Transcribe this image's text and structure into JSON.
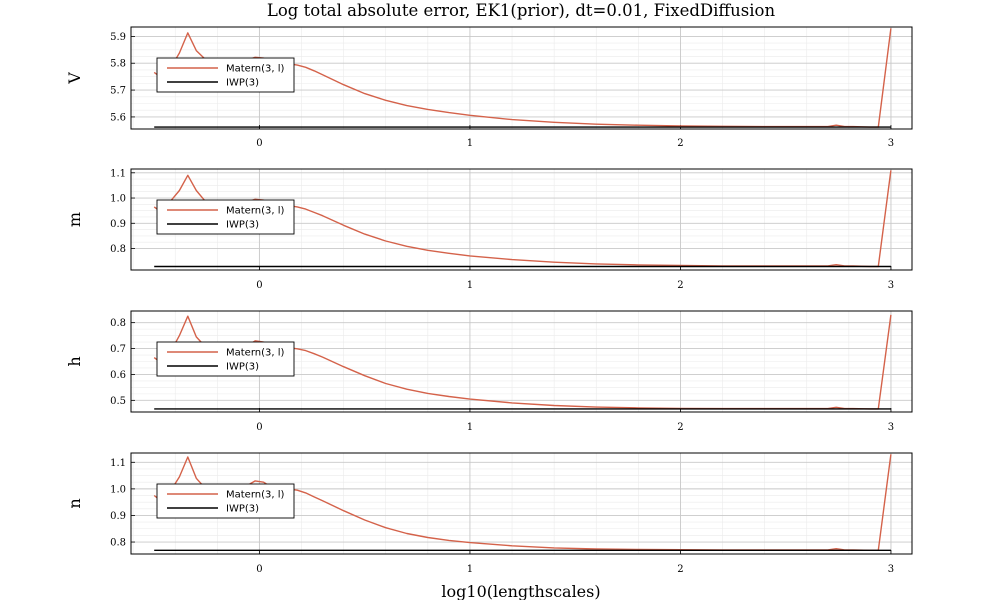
{
  "title": "Log total absolute error, EK1(prior), dt=0.01, FixedDiffusion",
  "xlabel": "log10(lengthscales)",
  "chart_data": [
    {
      "type": "line",
      "ylabel": "V",
      "xlim": [
        -0.61,
        3.1
      ],
      "ylim": [
        5.555,
        5.935
      ],
      "xticks": [
        0,
        1,
        2,
        3
      ],
      "yticks": [
        5.6,
        5.7,
        5.8,
        5.9
      ],
      "ytick_labels": [
        "5.6",
        "5.7",
        "5.8",
        "5.9"
      ],
      "grid": true,
      "legend": "upper-left",
      "series": [
        {
          "name": "Matern(3, l)",
          "color": "#d4624a",
          "x": [
            -0.5,
            -0.46,
            -0.42,
            -0.38,
            -0.34,
            -0.3,
            -0.26,
            -0.22,
            -0.18,
            -0.14,
            -0.1,
            -0.06,
            -0.02,
            0.02,
            0.06,
            0.1,
            0.14,
            0.18,
            0.22,
            0.26,
            0.3,
            0.4,
            0.5,
            0.6,
            0.7,
            0.8,
            0.9,
            1.0,
            1.2,
            1.4,
            1.6,
            1.8,
            2.0,
            2.2,
            2.4,
            2.6,
            2.7,
            2.74,
            2.78,
            2.82,
            2.9,
            2.94,
            3.0
          ],
          "y": [
            5.766,
            5.743,
            5.785,
            5.838,
            5.913,
            5.847,
            5.817,
            5.775,
            5.795,
            5.767,
            5.802,
            5.812,
            5.822,
            5.819,
            5.802,
            5.798,
            5.798,
            5.793,
            5.785,
            5.772,
            5.757,
            5.72,
            5.687,
            5.662,
            5.642,
            5.628,
            5.616,
            5.606,
            5.59,
            5.58,
            5.573,
            5.569,
            5.566,
            5.565,
            5.564,
            5.564,
            5.564,
            5.569,
            5.564,
            5.564,
            5.562,
            5.562,
            5.93
          ]
        },
        {
          "name": "IWP(3)",
          "color": "#000000",
          "x": [
            -0.5,
            3.0
          ],
          "y": [
            5.562,
            5.562
          ]
        }
      ]
    },
    {
      "type": "line",
      "ylabel": "m",
      "xlim": [
        -0.61,
        3.1
      ],
      "ylim": [
        0.715,
        1.115
      ],
      "xticks": [
        0,
        1,
        2,
        3
      ],
      "yticks": [
        0.8,
        0.9,
        1.0,
        1.1
      ],
      "ytick_labels": [
        "0.8",
        "0.9",
        "1.0",
        "1.1"
      ],
      "grid": true,
      "legend": "upper-left",
      "series": [
        {
          "name": "Matern(3, l)",
          "color": "#d4624a",
          "x": [
            -0.5,
            -0.46,
            -0.42,
            -0.38,
            -0.34,
            -0.3,
            -0.26,
            -0.22,
            -0.18,
            -0.14,
            -0.1,
            -0.06,
            -0.02,
            0.02,
            0.06,
            0.1,
            0.14,
            0.18,
            0.22,
            0.26,
            0.3,
            0.4,
            0.5,
            0.6,
            0.7,
            0.8,
            0.9,
            1.0,
            1.2,
            1.4,
            1.6,
            1.8,
            2.0,
            2.2,
            2.4,
            2.6,
            2.7,
            2.74,
            2.78,
            2.82,
            2.9,
            2.94,
            3.0
          ],
          "y": [
            0.965,
            0.94,
            0.99,
            1.03,
            1.09,
            1.03,
            0.99,
            0.955,
            0.97,
            0.94,
            0.975,
            0.985,
            0.995,
            0.992,
            0.975,
            0.97,
            0.97,
            0.965,
            0.956,
            0.943,
            0.93,
            0.892,
            0.857,
            0.83,
            0.809,
            0.793,
            0.781,
            0.771,
            0.756,
            0.746,
            0.739,
            0.735,
            0.733,
            0.731,
            0.731,
            0.731,
            0.731,
            0.736,
            0.731,
            0.731,
            0.729,
            0.729,
            1.11
          ]
        },
        {
          "name": "IWP(3)",
          "color": "#000000",
          "x": [
            -0.5,
            3.0
          ],
          "y": [
            0.729,
            0.729
          ]
        }
      ]
    },
    {
      "type": "line",
      "ylabel": "h",
      "xlim": [
        -0.61,
        3.1
      ],
      "ylim": [
        0.455,
        0.845
      ],
      "xticks": [
        0,
        1,
        2,
        3
      ],
      "yticks": [
        0.5,
        0.6,
        0.7,
        0.8
      ],
      "ytick_labels": [
        "0.5",
        "0.6",
        "0.7",
        "0.8"
      ],
      "grid": true,
      "legend": "upper-left",
      "series": [
        {
          "name": "Matern(3, l)",
          "color": "#d4624a",
          "x": [
            -0.5,
            -0.46,
            -0.42,
            -0.38,
            -0.34,
            -0.3,
            -0.26,
            -0.22,
            -0.18,
            -0.14,
            -0.1,
            -0.06,
            -0.02,
            0.02,
            0.06,
            0.1,
            0.14,
            0.18,
            0.22,
            0.26,
            0.3,
            0.4,
            0.5,
            0.6,
            0.7,
            0.8,
            0.9,
            1.0,
            1.2,
            1.4,
            1.6,
            1.8,
            2.0,
            2.2,
            2.4,
            2.6,
            2.7,
            2.74,
            2.78,
            2.82,
            2.9,
            2.94,
            3.0
          ],
          "y": [
            0.665,
            0.64,
            0.69,
            0.75,
            0.825,
            0.745,
            0.71,
            0.675,
            0.69,
            0.665,
            0.7,
            0.71,
            0.73,
            0.725,
            0.705,
            0.703,
            0.703,
            0.699,
            0.692,
            0.68,
            0.667,
            0.63,
            0.595,
            0.565,
            0.543,
            0.527,
            0.515,
            0.505,
            0.49,
            0.48,
            0.474,
            0.471,
            0.469,
            0.468,
            0.468,
            0.468,
            0.468,
            0.473,
            0.468,
            0.468,
            0.467,
            0.467,
            0.83
          ]
        },
        {
          "name": "IWP(3)",
          "color": "#000000",
          "x": [
            -0.5,
            3.0
          ],
          "y": [
            0.467,
            0.467
          ]
        }
      ]
    },
    {
      "type": "line",
      "ylabel": "n",
      "xlim": [
        -0.61,
        3.1
      ],
      "ylim": [
        0.755,
        1.135
      ],
      "xticks": [
        0,
        1,
        2,
        3
      ],
      "yticks": [
        0.8,
        0.9,
        1.0,
        1.1
      ],
      "ytick_labels": [
        "0.8",
        "0.9",
        "1.0",
        "1.1"
      ],
      "grid": true,
      "legend": "upper-left",
      "series": [
        {
          "name": "Matern(3, l)",
          "color": "#d4624a",
          "x": [
            -0.5,
            -0.46,
            -0.42,
            -0.38,
            -0.34,
            -0.3,
            -0.26,
            -0.22,
            -0.18,
            -0.14,
            -0.1,
            -0.06,
            -0.02,
            0.02,
            0.06,
            0.1,
            0.14,
            0.18,
            0.22,
            0.26,
            0.3,
            0.4,
            0.5,
            0.6,
            0.7,
            0.8,
            0.9,
            1.0,
            1.2,
            1.4,
            1.6,
            1.8,
            2.0,
            2.2,
            2.4,
            2.6,
            2.7,
            2.74,
            2.78,
            2.82,
            2.9,
            2.94,
            3.0
          ],
          "y": [
            0.975,
            0.95,
            0.995,
            1.045,
            1.12,
            1.04,
            1.005,
            0.97,
            0.99,
            0.965,
            1.0,
            1.012,
            1.03,
            1.025,
            1.005,
            1.0,
            1.0,
            0.995,
            0.985,
            0.97,
            0.955,
            0.918,
            0.883,
            0.854,
            0.832,
            0.817,
            0.806,
            0.798,
            0.786,
            0.778,
            0.774,
            0.772,
            0.771,
            0.77,
            0.77,
            0.77,
            0.77,
            0.775,
            0.77,
            0.77,
            0.769,
            0.769,
            1.13
          ]
        },
        {
          "name": "IWP(3)",
          "color": "#000000",
          "x": [
            -0.5,
            3.0
          ],
          "y": [
            0.769,
            0.769
          ]
        }
      ]
    }
  ]
}
